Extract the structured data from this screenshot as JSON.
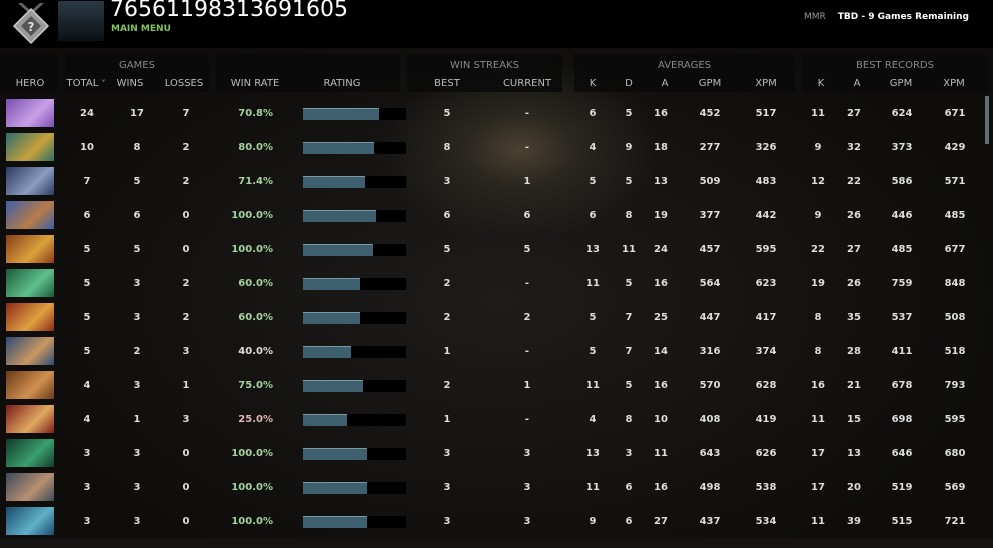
{
  "header": {
    "player_id": "76561198313691605",
    "main_menu": "MAIN MENU",
    "mmr_label": "MMR",
    "mmr_value": "TBD - 9 Games Remaining"
  },
  "groups": {
    "games": "GAMES",
    "win_streaks": "WIN STREAKS",
    "averages": "AVERAGES",
    "best_records": "BEST RECORDS"
  },
  "columns": {
    "hero": "HERO",
    "total": "TOTAL",
    "wins": "WINS",
    "losses": "LOSSES",
    "win_rate": "WIN RATE",
    "rating": "RATING",
    "best": "BEST",
    "current": "CURRENT",
    "k": "K",
    "d": "D",
    "a": "A",
    "gpm": "GPM",
    "xpm": "XPM",
    "bk": "K",
    "ba": "A",
    "bgpm": "GPM",
    "bxpm": "XPM"
  },
  "sort_indicator": "˅",
  "colors": {
    "win_rate_high": "#a3d39c",
    "win_rate_low": "#e0b4b4",
    "win_rate_mid": "#dddddd",
    "rating_bar": "#3e5f6e",
    "main_menu": "#7fc35a"
  },
  "rows": [
    {
      "hero_colors": [
        "#7a4fb0",
        "#c9a0e8"
      ],
      "total": "24",
      "wins": "17",
      "losses": "7",
      "win_rate": "70.8%",
      "rating": 0.74,
      "best": "5",
      "current": "-",
      "k": "6",
      "d": "5",
      "a": "16",
      "gpm": "452",
      "xpm": "517",
      "bk": "11",
      "ba": "27",
      "bgpm": "624",
      "bxpm": "671"
    },
    {
      "hero_colors": [
        "#2b6d6a",
        "#c9a13b"
      ],
      "total": "10",
      "wins": "8",
      "losses": "2",
      "win_rate": "80.0%",
      "rating": 0.69,
      "best": "8",
      "current": "-",
      "k": "4",
      "d": "9",
      "a": "18",
      "gpm": "277",
      "xpm": "326",
      "bk": "9",
      "ba": "32",
      "bgpm": "373",
      "bxpm": "429"
    },
    {
      "hero_colors": [
        "#2c3a5e",
        "#8a9bc0"
      ],
      "total": "7",
      "wins": "5",
      "losses": "2",
      "win_rate": "71.4%",
      "rating": 0.6,
      "best": "3",
      "current": "1",
      "k": "5",
      "d": "5",
      "a": "13",
      "gpm": "509",
      "xpm": "483",
      "bk": "12",
      "ba": "22",
      "bgpm": "586",
      "bxpm": "571"
    },
    {
      "hero_colors": [
        "#3e5fa8",
        "#b77b48"
      ],
      "total": "6",
      "wins": "6",
      "losses": "0",
      "win_rate": "100.0%",
      "rating": 0.71,
      "best": "6",
      "current": "6",
      "k": "6",
      "d": "8",
      "a": "19",
      "gpm": "377",
      "xpm": "442",
      "bk": "9",
      "ba": "26",
      "bgpm": "446",
      "bxpm": "485"
    },
    {
      "hero_colors": [
        "#8a3a1a",
        "#d9a23a"
      ],
      "total": "5",
      "wins": "5",
      "losses": "0",
      "win_rate": "100.0%",
      "rating": 0.68,
      "best": "5",
      "current": "5",
      "k": "13",
      "d": "11",
      "a": "24",
      "gpm": "457",
      "xpm": "595",
      "bk": "22",
      "ba": "27",
      "bgpm": "485",
      "bxpm": "677"
    },
    {
      "hero_colors": [
        "#1b5a3a",
        "#5fc08a"
      ],
      "total": "5",
      "wins": "3",
      "losses": "2",
      "win_rate": "60.0%",
      "rating": 0.55,
      "best": "2",
      "current": "-",
      "k": "11",
      "d": "5",
      "a": "16",
      "gpm": "564",
      "xpm": "623",
      "bk": "19",
      "ba": "26",
      "bgpm": "759",
      "bxpm": "848"
    },
    {
      "hero_colors": [
        "#8a2a18",
        "#e0a040"
      ],
      "total": "5",
      "wins": "3",
      "losses": "2",
      "win_rate": "60.0%",
      "rating": 0.55,
      "best": "2",
      "current": "2",
      "k": "5",
      "d": "7",
      "a": "25",
      "gpm": "447",
      "xpm": "417",
      "bk": "8",
      "ba": "35",
      "bgpm": "537",
      "bxpm": "508"
    },
    {
      "hero_colors": [
        "#2c4a78",
        "#c89860"
      ],
      "total": "5",
      "wins": "2",
      "losses": "3",
      "win_rate": "40.0%",
      "rating": 0.47,
      "best": "1",
      "current": "-",
      "k": "5",
      "d": "7",
      "a": "14",
      "gpm": "316",
      "xpm": "374",
      "bk": "8",
      "ba": "28",
      "bgpm": "411",
      "bxpm": "518"
    },
    {
      "hero_colors": [
        "#6a3a18",
        "#d09050"
      ],
      "total": "4",
      "wins": "3",
      "losses": "1",
      "win_rate": "75.0%",
      "rating": 0.58,
      "best": "2",
      "current": "1",
      "k": "11",
      "d": "5",
      "a": "16",
      "gpm": "570",
      "xpm": "628",
      "bk": "16",
      "ba": "21",
      "bgpm": "678",
      "bxpm": "793"
    },
    {
      "hero_colors": [
        "#7a1a1a",
        "#e0a860"
      ],
      "total": "4",
      "wins": "1",
      "losses": "3",
      "win_rate": "25.0%",
      "rating": 0.43,
      "best": "1",
      "current": "-",
      "k": "4",
      "d": "8",
      "a": "10",
      "gpm": "408",
      "xpm": "419",
      "bk": "11",
      "ba": "15",
      "bgpm": "698",
      "bxpm": "595"
    },
    {
      "hero_colors": [
        "#123a2a",
        "#3aa070"
      ],
      "total": "3",
      "wins": "3",
      "losses": "0",
      "win_rate": "100.0%",
      "rating": 0.62,
      "best": "3",
      "current": "3",
      "k": "13",
      "d": "3",
      "a": "11",
      "gpm": "643",
      "xpm": "626",
      "bk": "17",
      "ba": "13",
      "bgpm": "646",
      "bxpm": "680"
    },
    {
      "hero_colors": [
        "#3a4a5a",
        "#b89070"
      ],
      "total": "3",
      "wins": "3",
      "losses": "0",
      "win_rate": "100.0%",
      "rating": 0.62,
      "best": "3",
      "current": "3",
      "k": "11",
      "d": "6",
      "a": "16",
      "gpm": "498",
      "xpm": "538",
      "bk": "17",
      "ba": "20",
      "bgpm": "519",
      "bxpm": "569"
    },
    {
      "hero_colors": [
        "#1a4a6a",
        "#60b0c8"
      ],
      "total": "3",
      "wins": "3",
      "losses": "0",
      "win_rate": "100.0%",
      "rating": 0.62,
      "best": "3",
      "current": "3",
      "k": "9",
      "d": "6",
      "a": "27",
      "gpm": "437",
      "xpm": "534",
      "bk": "11",
      "ba": "39",
      "bgpm": "515",
      "bxpm": "721"
    }
  ]
}
